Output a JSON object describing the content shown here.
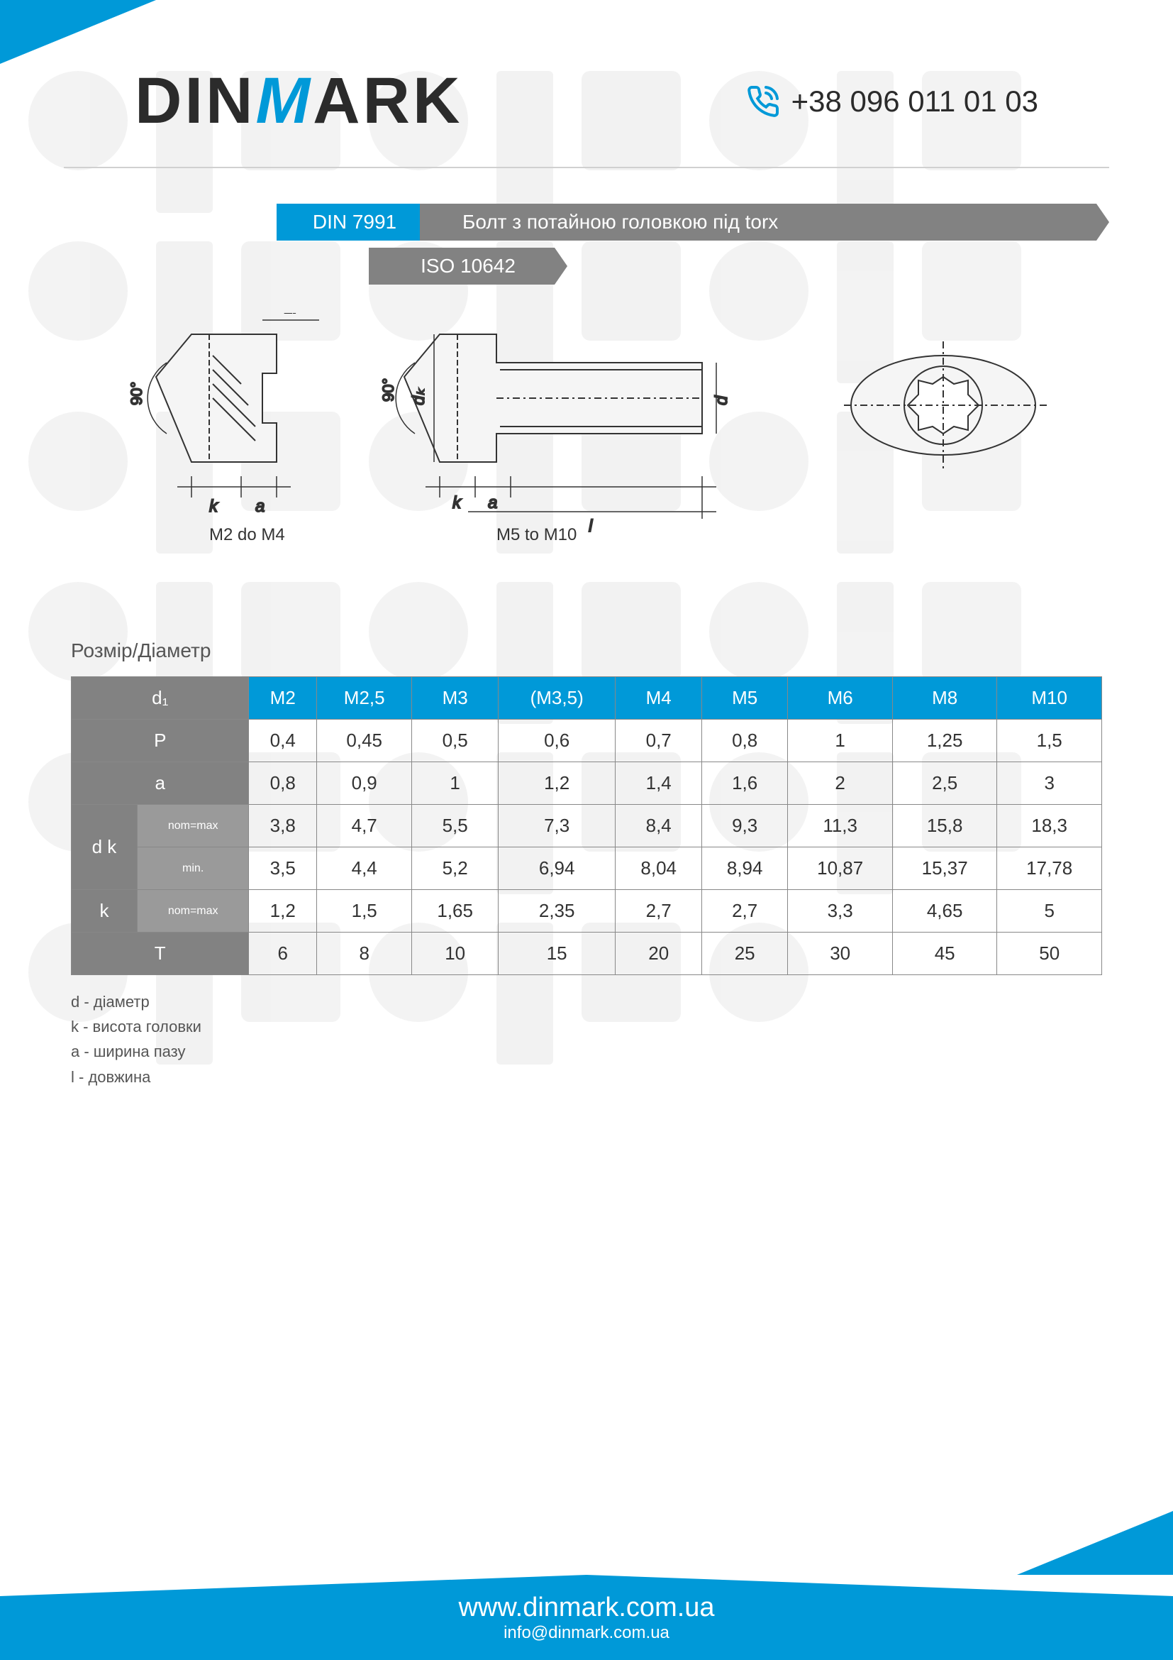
{
  "header": {
    "logo_parts": {
      "pre": "DIN",
      "accent": "M",
      "post": "ARK"
    },
    "phone": "+38 096 011 01 03"
  },
  "title": {
    "din": "DIN 7991",
    "description": "Болт з потайною головкою під torx",
    "iso": "ISO 10642"
  },
  "diagrams": {
    "label_left": "M2 do M4",
    "label_mid": "M5 to M10",
    "dim_1P": "1P",
    "dim_90": "90°",
    "dim_k": "k",
    "dim_a": "a",
    "dim_dk": "dₖ",
    "dim_d": "d",
    "dim_l": "l"
  },
  "section_title": "Розмір/Діаметр",
  "table": {
    "header_row_label": "d₁",
    "columns": [
      "M2",
      "M2,5",
      "M3",
      "(M3,5)",
      "M4",
      "M5",
      "M6",
      "M8",
      "M10"
    ],
    "rows": [
      {
        "label": "P",
        "sub": "",
        "values": [
          "0,4",
          "0,45",
          "0,5",
          "0,6",
          "0,7",
          "0,8",
          "1",
          "1,25",
          "1,5"
        ]
      },
      {
        "label": "a",
        "sub": "",
        "values": [
          "0,8",
          "0,9",
          "1",
          "1,2",
          "1,4",
          "1,6",
          "2",
          "2,5",
          "3"
        ]
      },
      {
        "label": "d k",
        "sub": "nom=max",
        "values": [
          "3,8",
          "4,7",
          "5,5",
          "7,3",
          "8,4",
          "9,3",
          "11,3",
          "15,8",
          "18,3"
        ]
      },
      {
        "label": "",
        "sub": "min.",
        "values": [
          "3,5",
          "4,4",
          "5,2",
          "6,94",
          "8,04",
          "8,94",
          "10,87",
          "15,37",
          "17,78"
        ]
      },
      {
        "label": "k",
        "sub": "nom=max",
        "values": [
          "1,2",
          "1,5",
          "1,65",
          "2,35",
          "2,7",
          "2,7",
          "3,3",
          "4,65",
          "5"
        ]
      },
      {
        "label": "T",
        "sub": "",
        "values": [
          "6",
          "8",
          "10",
          "15",
          "20",
          "25",
          "30",
          "45",
          "50"
        ]
      }
    ]
  },
  "legend": [
    "d - діаметр",
    "k - висота головки",
    "a - ширина пазу",
    "l - довжина"
  ],
  "footer": {
    "url": "www.dinmark.com.ua",
    "email": "info@dinmark.com.ua"
  },
  "colors": {
    "accent": "#0099d8",
    "gray": "#828282",
    "gray_light": "#9a9a9a",
    "text": "#2b2b2b",
    "border": "#888888"
  }
}
